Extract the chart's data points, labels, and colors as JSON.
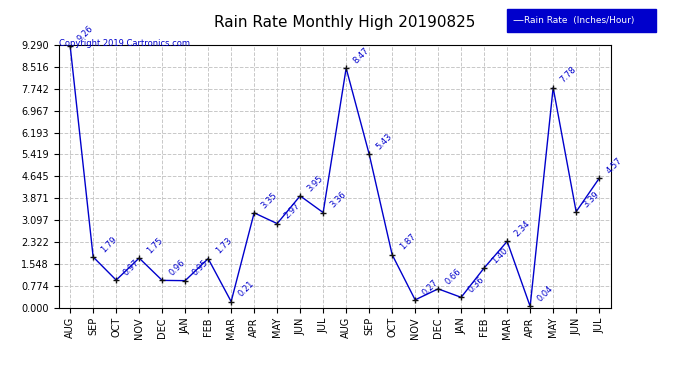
{
  "title": "Rain Rate Monthly High 20190825",
  "copyright": "Copyright 2019 Cartronics.com",
  "legend_label": "Rain Rate  (Inches/Hour)",
  "months": [
    "AUG",
    "SEP",
    "OCT",
    "NOV",
    "DEC",
    "JAN",
    "FEB",
    "MAR",
    "APR",
    "MAY",
    "JUN",
    "JUL",
    "AUG",
    "SEP",
    "OCT",
    "NOV",
    "DEC",
    "JAN",
    "FEB",
    "MAR",
    "APR",
    "MAY",
    "JUN",
    "JUL"
  ],
  "values": [
    9.26,
    1.79,
    0.97,
    1.75,
    0.96,
    0.95,
    1.73,
    0.21,
    3.35,
    2.97,
    3.95,
    3.36,
    8.47,
    5.43,
    1.87,
    0.27,
    0.66,
    0.36,
    1.4,
    2.34,
    0.04,
    7.78,
    3.39,
    4.57
  ],
  "ylim": [
    0.0,
    9.29
  ],
  "yticks": [
    0.0,
    0.774,
    1.548,
    2.322,
    3.097,
    3.871,
    4.645,
    5.419,
    6.193,
    6.967,
    7.742,
    8.516,
    9.29
  ],
  "line_color": "#0000cc",
  "marker_color": "#000000",
  "background_color": "#ffffff",
  "grid_color": "#c8c8c8",
  "title_fontsize": 11,
  "label_fontsize": 6.0,
  "tick_fontsize": 7,
  "legend_bg": "#0000cc",
  "legend_fg": "#ffffff"
}
